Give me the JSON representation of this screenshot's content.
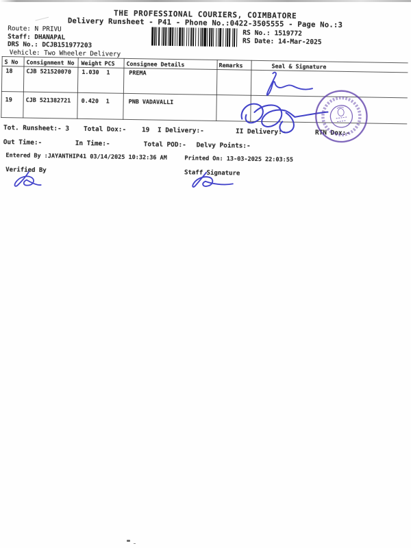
{
  "header": {
    "title": "THE PROFESSIONAL COURIERS, COIMBATORE",
    "subtitle": "Delivery Runsheet - P41 - Phone No.:0422-3505555 - Page No.:3",
    "route": "Route: N PRIVU",
    "staff": "Staff: DHANAPAL",
    "drs_no": "DRS No.: DCJB151977203",
    "vehicle": "Vehicle: Two Wheeler Delivery",
    "rs_no": "RS No.: 1519772",
    "rs_date": "RS Date: 14-Mar-2025",
    "barcode_pattern": "31211213112122113121121231211312112122131211213112212113121122131121231121312112"
  },
  "table": {
    "headers": {
      "s_no": "S No",
      "consignment": "Consignment No",
      "weight": "Weight",
      "pcs": "PCS",
      "consignee": "Consignee Details",
      "remarks": "Remarks",
      "seal": "Seal & Signature"
    },
    "rows": [
      {
        "s_no": "18",
        "consignment": "CJB 521520070",
        "weight": "1.030",
        "pcs": "1",
        "consignee": "PREMA",
        "remarks": ""
      },
      {
        "s_no": "19",
        "consignment": "CJB 521382721",
        "weight": "0.420",
        "pcs": "1",
        "consignee": "PNB VADAVALLI",
        "remarks": ""
      }
    ]
  },
  "summary": {
    "tot_runsheet": "Tot. Runsheet:- 3",
    "total_dox_label": "Total Dox:-",
    "total_dox_value": "19",
    "i_delivery": "I Delivery:-",
    "ii_delivery": "II Delivery:-",
    "rtn_dox": "RTN Dox:-",
    "out_time": "Out Time:-",
    "in_time": "In Time:-",
    "total_pod": "Total POD:-",
    "delvy_points": "Delvy Points:-"
  },
  "footer": {
    "entered_by": "Entered By :JAYANTHIP41 03/14/2025 10:32:36 AM",
    "printed_on": "Printed On: 13-03-2025 22:03:55",
    "verified_by": "Verified By",
    "staff_signature": "Staff Signature"
  },
  "colors": {
    "ink": "#2d2d2d",
    "signature_blue": "#3334c5",
    "stamp_purple": "#5a3aa8"
  }
}
